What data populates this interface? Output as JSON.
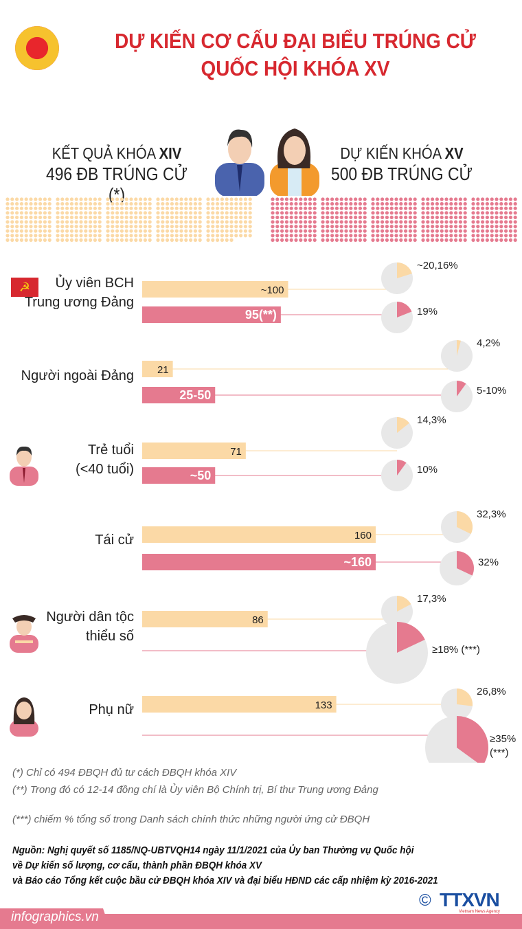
{
  "header": {
    "title_line1": "DỰ KIẾN CƠ CẤU ĐẠI BIỂU TRÚNG CỬ",
    "title_line2": "QUỐC HỘI KHÓA XV",
    "left_label": "KẾT QUẢ KHÓA ",
    "left_label_bold": "XIV",
    "left_count": "496 ĐB TRÚNG CỬ (*)",
    "right_label": "DỰ KIẾN KHÓA ",
    "right_label_bold": "XV",
    "right_count": "500 ĐB TRÚNG CỬ"
  },
  "colors": {
    "title": "#d7282f",
    "xiv": "#fbd9a6",
    "xv": "#e57a8f",
    "pie_bg": "#e8e8e8"
  },
  "dots": {
    "xiv_count": 496,
    "xv_count": 500
  },
  "chart_data": {
    "type": "bar",
    "series": [
      {
        "name": "Khóa XIV (kết quả)",
        "color": "#fbd9a6"
      },
      {
        "name": "Khóa XV (dự kiến)",
        "color": "#e57a8f"
      }
    ],
    "categories": [
      {
        "label": [
          "Ủy viên BCH",
          "Trung ương Đảng"
        ],
        "xiv": {
          "value": 100,
          "text": "~100",
          "pct": 20.16,
          "pct_text": "~20,16%"
        },
        "xv": {
          "value": 95,
          "text": "95(**)",
          "pct": 19,
          "pct_text": "19%"
        }
      },
      {
        "label": [
          "Người ngoài Đảng"
        ],
        "xiv": {
          "value": 21,
          "text": "21",
          "pct": 4.2,
          "pct_text": "4,2%"
        },
        "xv": {
          "value": 50,
          "text": "25-50",
          "pct": 10,
          "pct_text": "5-10%"
        }
      },
      {
        "label": [
          "Trẻ tuổi",
          "(<40 tuổi)"
        ],
        "xiv": {
          "value": 71,
          "text": "71",
          "pct": 14.3,
          "pct_text": "14,3%"
        },
        "xv": {
          "value": 50,
          "text": "~50",
          "pct": 10,
          "pct_text": "10%"
        }
      },
      {
        "label": [
          "Tái cử"
        ],
        "xiv": {
          "value": 160,
          "text": "160",
          "pct": 32.3,
          "pct_text": "32,3%"
        },
        "xv": {
          "value": 160,
          "text": "~160",
          "pct": 32,
          "pct_text": "32%"
        }
      },
      {
        "label": [
          "Người dân tộc",
          "thiểu số"
        ],
        "xiv": {
          "value": 86,
          "text": "86",
          "pct": 17.3,
          "pct_text": "17,3%"
        },
        "xv": {
          "value": null,
          "text": "",
          "pct": 18,
          "pct_text": "≥18% (***)"
        }
      },
      {
        "label": [
          "Phụ nữ"
        ],
        "xiv": {
          "value": 133,
          "text": "133",
          "pct": 26.8,
          "pct_text": "26,8%"
        },
        "xv": {
          "value": null,
          "text": "",
          "pct": 35,
          "pct_text": "≥35% (***)"
        }
      }
    ]
  },
  "footnotes": [
    "(*) Chỉ có 494 ĐBQH đủ tư cách ĐBQH khóa XIV",
    "(**) Trong đó có 12-14 đồng chí là Ủy viên Bộ Chính trị, Bí thư Trung ương Đảng",
    "(***) chiếm % tổng số trong Danh sách chính thức những người ứng cử ĐBQH"
  ],
  "source": [
    "Nguồn: Nghị quyết số 1185/NQ-UBTVQH14 ngày 11/1/2021 của Ủy ban Thường vụ Quốc hội",
    "về Dự kiến số lượng, cơ cấu, thành phần ĐBQH khóa XV",
    "và Báo cáo Tổng kết cuộc bầu cử ĐBQH khóa XIV  và đại biểu HĐND các cấp nhiệm kỳ 2016-2021"
  ],
  "brand": {
    "site": "infographics.vn",
    "logo": "TTXVN",
    "logo_sub": "Vietnam News Agency",
    "copyright": "©"
  }
}
